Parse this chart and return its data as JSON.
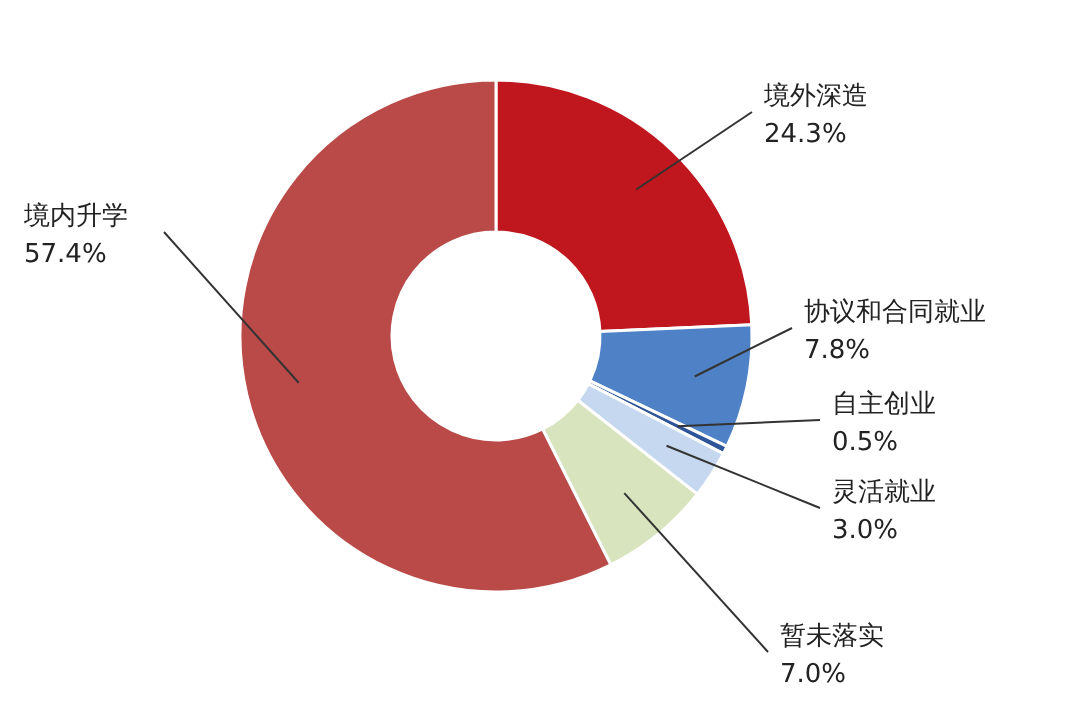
{
  "chart_data": {
    "type": "donut",
    "categories": [
      "境外深造",
      "协议和合同就业",
      "自主创业",
      "灵活就业",
      "暂未落实",
      "境内升学"
    ],
    "values": [
      24.3,
      7.8,
      0.5,
      3.0,
      7.0,
      57.4
    ],
    "colors": [
      "#c0161e",
      "#4f81c7",
      "#2e5597",
      "#c6d8f0",
      "#d7e4bd",
      "#b94a48"
    ],
    "value_labels": [
      "24.3%",
      "7.8%",
      "0.5%",
      "3.0%",
      "7.0%",
      "57.4%"
    ],
    "legend": false
  }
}
